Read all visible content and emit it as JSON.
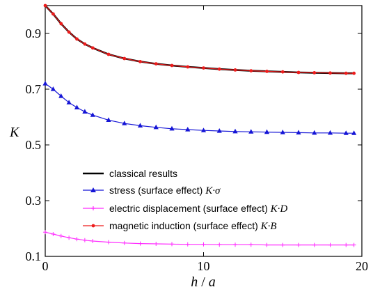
{
  "chart_data": {
    "type": "line",
    "xlabel": {
      "main": "h",
      "sep": " / ",
      "denom": "a"
    },
    "ylabel": "K",
    "xlim": [
      0,
      20
    ],
    "ylim": [
      0.1,
      1.0
    ],
    "xticks": [
      0,
      10,
      20
    ],
    "xtick_labels": [
      "0",
      "10",
      "20"
    ],
    "yticks": [
      0.1,
      0.3,
      0.5,
      0.7,
      0.9
    ],
    "ytick_labels": [
      "0.1",
      "0.3",
      "0.5",
      "0.7",
      "0.9"
    ],
    "grid": false,
    "legend_placement": "bottom-center",
    "series": [
      {
        "key": "classical",
        "name": "classical results",
        "legend_text": "classical results",
        "legend_sub": "",
        "color": "#000000",
        "marker": "none",
        "x": [
          0,
          0.5,
          1,
          1.5,
          2,
          2.5,
          3,
          4,
          5,
          6,
          7,
          8,
          9,
          10,
          11,
          12,
          13,
          14,
          15,
          16,
          17,
          18,
          19,
          19.5
        ],
        "y": [
          1.0,
          0.97,
          0.935,
          0.905,
          0.88,
          0.862,
          0.848,
          0.825,
          0.81,
          0.799,
          0.791,
          0.785,
          0.78,
          0.776,
          0.772,
          0.769,
          0.766,
          0.764,
          0.762,
          0.76,
          0.759,
          0.758,
          0.757,
          0.757
        ]
      },
      {
        "key": "stress",
        "name": "stress (surface effect) K·σ",
        "legend_text": "stress (surface effect) ",
        "legend_sub": "K·σ",
        "color": "#1515d6",
        "marker": "triangle",
        "x": [
          0,
          0.5,
          1,
          1.5,
          2,
          2.5,
          3,
          4,
          5,
          6,
          7,
          8,
          9,
          10,
          11,
          12,
          13,
          14,
          15,
          16,
          17,
          18,
          19,
          19.5
        ],
        "y": [
          0.72,
          0.7,
          0.675,
          0.652,
          0.634,
          0.619,
          0.607,
          0.589,
          0.577,
          0.569,
          0.563,
          0.558,
          0.555,
          0.552,
          0.55,
          0.548,
          0.547,
          0.546,
          0.545,
          0.544,
          0.543,
          0.543,
          0.542,
          0.542
        ]
      },
      {
        "key": "electric",
        "name": "electric displacement (surface effect) K·D",
        "legend_text": "electric displacement (surface effect) ",
        "legend_sub": "K·D",
        "color": "#ff2bff",
        "marker": "plus",
        "x": [
          0,
          0.5,
          1,
          1.5,
          2,
          2.5,
          3,
          4,
          5,
          6,
          7,
          8,
          9,
          10,
          11,
          12,
          13,
          14,
          15,
          16,
          17,
          18,
          19,
          19.5
        ],
        "y": [
          0.187,
          0.18,
          0.173,
          0.167,
          0.162,
          0.158,
          0.155,
          0.151,
          0.148,
          0.146,
          0.145,
          0.144,
          0.143,
          0.143,
          0.142,
          0.142,
          0.142,
          0.141,
          0.141,
          0.141,
          0.141,
          0.141,
          0.141,
          0.141
        ]
      },
      {
        "key": "magnetic",
        "name": "magnetic induction (surface effect) K·B",
        "legend_text": "magnetic induction (surface effect) ",
        "legend_sub": "K·B",
        "color": "#ee1c1c",
        "marker": "dot",
        "x": [
          0,
          0.5,
          1,
          1.5,
          2,
          2.5,
          3,
          4,
          5,
          6,
          7,
          8,
          9,
          10,
          11,
          12,
          13,
          14,
          15,
          16,
          17,
          18,
          19,
          19.5
        ],
        "y": [
          1.0,
          0.97,
          0.935,
          0.905,
          0.88,
          0.862,
          0.848,
          0.825,
          0.81,
          0.799,
          0.791,
          0.785,
          0.78,
          0.776,
          0.772,
          0.769,
          0.766,
          0.764,
          0.762,
          0.76,
          0.759,
          0.758,
          0.757,
          0.757
        ]
      }
    ]
  }
}
